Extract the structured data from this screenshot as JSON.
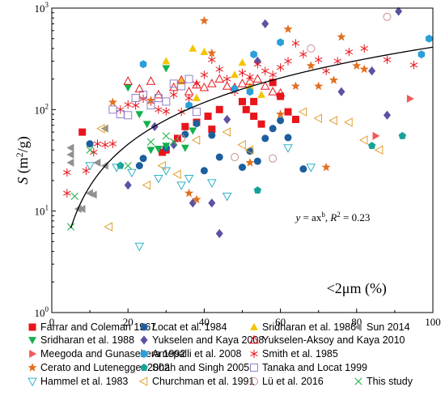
{
  "chart_data": {
    "type": "scatter",
    "title": "",
    "xlabel": "<2μm (%)",
    "ylabel": "S (m²/g)",
    "ylabel_parts": {
      "var": "S",
      "unit": " (m",
      "sup": "2",
      "tail": "/g)"
    },
    "xlim": [
      0,
      100
    ],
    "ylim": [
      1,
      1000
    ],
    "yscale": "log",
    "xticks": [
      "0",
      "20",
      "40",
      "60",
      "80",
      "100"
    ],
    "yticks": [
      {
        "base": "10",
        "exp": "0",
        "value": 1
      },
      {
        "base": "10",
        "exp": "1",
        "value": 10
      },
      {
        "base": "10",
        "exp": "2",
        "value": 100
      },
      {
        "base": "10",
        "exp": "3",
        "value": 1000
      }
    ],
    "grid": false,
    "legend_position": "bottom",
    "annotation": {
      "lhs": "y",
      "eq": " = ax",
      "sup": "b",
      "sep": ", ",
      "r2": "R",
      "r2sup": "2",
      "val": " = 0.23"
    },
    "fit": {
      "type": "power",
      "a": 0.75,
      "b": 1.37,
      "x_range": [
        5,
        100
      ]
    },
    "series": [
      {
        "name": "Farrar and Coleman 1967",
        "marker": "square",
        "color": "#e8151b",
        "points": [
          [
            8,
            60
          ],
          [
            29,
            38
          ],
          [
            30,
            40
          ],
          [
            33,
            52
          ],
          [
            35,
            68
          ],
          [
            38,
            75
          ],
          [
            41,
            86
          ],
          [
            42,
            64
          ],
          [
            44,
            100
          ],
          [
            50,
            120
          ],
          [
            51,
            100
          ],
          [
            53,
            86
          ],
          [
            55,
            72
          ],
          [
            58,
            185
          ],
          [
            60,
            135
          ],
          [
            62,
            95
          ],
          [
            64,
            80
          ],
          [
            53,
            120
          ]
        ]
      },
      {
        "name": "Locat et al. 1984",
        "marker": "circle",
        "color": "#1c5e9e",
        "points": [
          [
            10,
            46
          ],
          [
            23,
            28
          ],
          [
            24,
            33
          ],
          [
            30,
            42
          ],
          [
            35,
            57
          ],
          [
            38,
            73
          ],
          [
            40,
            25
          ],
          [
            42,
            56
          ],
          [
            44,
            34
          ],
          [
            50,
            27
          ],
          [
            52,
            39
          ],
          [
            54,
            31
          ],
          [
            56,
            52
          ],
          [
            58,
            65
          ],
          [
            60,
            78
          ],
          [
            62,
            53
          ],
          [
            66,
            26
          ]
        ]
      },
      {
        "name": "Sridharan et al. 1986",
        "marker": "triangle-up",
        "color": "#f5c400",
        "points": [
          [
            30,
            300
          ],
          [
            34,
            190
          ],
          [
            37,
            400
          ],
          [
            40,
            370
          ],
          [
            38,
            130
          ],
          [
            48,
            220
          ],
          [
            50,
            290
          ],
          [
            52,
            170
          ],
          [
            55,
            140
          ]
        ]
      },
      {
        "name": "Sun 2014",
        "marker": "triangle-left",
        "color": "#909090",
        "points": [
          [
            5,
            42
          ],
          [
            5,
            36
          ],
          [
            5,
            30
          ],
          [
            7,
            10.5
          ],
          [
            8,
            10.5
          ],
          [
            10,
            15
          ],
          [
            11,
            14.5
          ],
          [
            12,
            30
          ],
          [
            14,
            28
          ],
          [
            14,
            65
          ]
        ]
      },
      {
        "name": "Sridharan et al. 1988",
        "marker": "triangle-down",
        "color": "#12b24d",
        "points": [
          [
            20,
            165
          ],
          [
            23,
            90
          ],
          [
            25,
            72
          ],
          [
            26,
            40
          ],
          [
            28,
            41
          ],
          [
            30,
            44
          ],
          [
            35,
            42
          ],
          [
            37,
            62
          ],
          [
            30,
            255
          ]
        ]
      },
      {
        "name": "Yukselen and Kaya 2008",
        "marker": "diamond",
        "color": "#5a52a3",
        "points": [
          [
            20,
            18
          ],
          [
            27,
            68
          ],
          [
            32,
            45
          ],
          [
            37,
            12
          ],
          [
            42,
            12
          ],
          [
            44,
            6
          ],
          [
            46,
            80
          ],
          [
            54,
            300
          ],
          [
            56,
            700
          ],
          [
            76,
            150
          ],
          [
            84,
            240
          ],
          [
            88,
            88
          ],
          [
            91,
            930
          ]
        ]
      },
      {
        "name": "Yukselen-Aksoy and Kaya 2010",
        "marker": "triangle-up-open",
        "color": "#e8151b",
        "points": [
          [
            20,
            190
          ],
          [
            23,
            160
          ],
          [
            26,
            190
          ],
          [
            28,
            140
          ],
          [
            32,
            165
          ],
          [
            34,
            195
          ],
          [
            36,
            150
          ],
          [
            38,
            175
          ],
          [
            40,
            165
          ],
          [
            42,
            180
          ],
          [
            44,
            200
          ],
          [
            46,
            170
          ],
          [
            48,
            165
          ],
          [
            50,
            180
          ],
          [
            52,
            190
          ],
          [
            54,
            200
          ],
          [
            56,
            170
          ],
          [
            58,
            150
          ],
          [
            60,
            145
          ]
        ]
      },
      {
        "name": "Meegoda and Gunasekera 1992",
        "marker": "triangle-right",
        "color": "#f05a5a",
        "points": [
          [
            85,
            55
          ],
          [
            94,
            128
          ]
        ]
      },
      {
        "name": "Smith et al. 1985",
        "marker": "asterisk",
        "color": "#e8151b",
        "points": [
          [
            4,
            24
          ],
          [
            4,
            15
          ],
          [
            9,
            25
          ],
          [
            11,
            38
          ],
          [
            12,
            46
          ],
          [
            14,
            45
          ],
          [
            16,
            46
          ],
          [
            18,
            100
          ],
          [
            20,
            112
          ],
          [
            22,
            110
          ],
          [
            24,
            128
          ],
          [
            26,
            120
          ],
          [
            28,
            100
          ],
          [
            30,
            96
          ],
          [
            32,
            140
          ],
          [
            34,
            95
          ],
          [
            36,
            130
          ],
          [
            38,
            180
          ],
          [
            40,
            220
          ],
          [
            42,
            310
          ],
          [
            44,
            250
          ],
          [
            46,
            200
          ],
          [
            48,
            150
          ],
          [
            50,
            230
          ],
          [
            52,
            210
          ],
          [
            54,
            280
          ],
          [
            56,
            240
          ],
          [
            58,
            220
          ],
          [
            60,
            260
          ],
          [
            62,
            300
          ],
          [
            64,
            450
          ],
          [
            66,
            350
          ],
          [
            70,
            310
          ],
          [
            72,
            240
          ],
          [
            75,
            300
          ],
          [
            78,
            370
          ],
          [
            82,
            400
          ],
          [
            88,
            310
          ],
          [
            95,
            275
          ]
        ]
      },
      {
        "name": "Arnepalli et al. 2008",
        "marker": "hexagon",
        "color": "#2a9fd8",
        "points": [
          [
            24,
            280
          ],
          [
            36,
            110
          ],
          [
            48,
            160
          ],
          [
            52,
            150
          ],
          [
            53,
            350
          ],
          [
            60,
            460
          ],
          [
            97,
            350
          ],
          [
            99,
            500
          ]
        ]
      },
      {
        "name": "Cerato and Lutenegger 2002",
        "marker": "star",
        "color": "#e07020",
        "points": [
          [
            16,
            118
          ],
          [
            26,
            123
          ],
          [
            36,
            15
          ],
          [
            38,
            13
          ],
          [
            40,
            750
          ],
          [
            42,
            360
          ],
          [
            52,
            30
          ],
          [
            60,
            90
          ],
          [
            62,
            620
          ],
          [
            64,
            170
          ],
          [
            68,
            270
          ],
          [
            70,
            170
          ],
          [
            72,
            27
          ],
          [
            74,
            195
          ],
          [
            76,
            520
          ],
          [
            80,
            270
          ],
          [
            82,
            250
          ]
        ]
      },
      {
        "name": "Shah and Singh 2005",
        "marker": "pentagon",
        "color": "#17a296",
        "points": [
          [
            18,
            28
          ],
          [
            54,
            16
          ],
          [
            84,
            44
          ],
          [
            92,
            55
          ]
        ]
      },
      {
        "name": "Tanaka and Locat 1999",
        "marker": "square-open",
        "color": "#9080c8",
        "points": [
          [
            16,
            100
          ],
          [
            18,
            90
          ],
          [
            20,
            88
          ],
          [
            22,
            130
          ],
          [
            24,
            140
          ],
          [
            26,
            110
          ],
          [
            28,
            130
          ],
          [
            30,
            120
          ],
          [
            32,
            180
          ],
          [
            34,
            170
          ],
          [
            36,
            200
          ],
          [
            38,
            95
          ]
        ]
      },
      {
        "name": "Hammel et al. 1983",
        "marker": "triangle-down-open",
        "color": "#30b0c8",
        "points": [
          [
            10,
            28
          ],
          [
            17,
            27
          ],
          [
            21,
            24
          ],
          [
            23,
            4.5
          ],
          [
            28,
            21
          ],
          [
            30,
            25
          ],
          [
            34,
            18
          ],
          [
            36,
            21
          ],
          [
            42,
            19
          ],
          [
            46,
            14
          ],
          [
            62,
            42
          ],
          [
            68,
            27
          ]
        ]
      },
      {
        "name": "Churchman et al. 1991",
        "marker": "triangle-left-open",
        "color": "#e0a030",
        "points": [
          [
            13,
            65
          ],
          [
            15,
            7
          ],
          [
            25,
            18
          ],
          [
            29,
            28
          ],
          [
            33,
            23
          ],
          [
            38,
            50
          ],
          [
            46,
            60
          ],
          [
            50,
            45
          ],
          [
            52,
            40
          ],
          [
            66,
            95
          ],
          [
            70,
            82
          ],
          [
            74,
            78
          ],
          [
            78,
            75
          ],
          [
            82,
            50
          ],
          [
            86,
            40
          ]
        ]
      },
      {
        "name": "Lü et al. 2016",
        "marker": "circle-open",
        "color": "#c89090",
        "points": [
          [
            34,
            52
          ],
          [
            48,
            34
          ],
          [
            58,
            33
          ],
          [
            68,
            400
          ],
          [
            88,
            820
          ]
        ]
      },
      {
        "name": "This study",
        "marker": "x",
        "color": "#26b34a",
        "points": [
          [
            5,
            7
          ],
          [
            6,
            14
          ],
          [
            10,
            40
          ],
          [
            20,
            28
          ],
          [
            26,
            48
          ],
          [
            30,
            55
          ],
          [
            32,
            48
          ]
        ]
      }
    ]
  }
}
